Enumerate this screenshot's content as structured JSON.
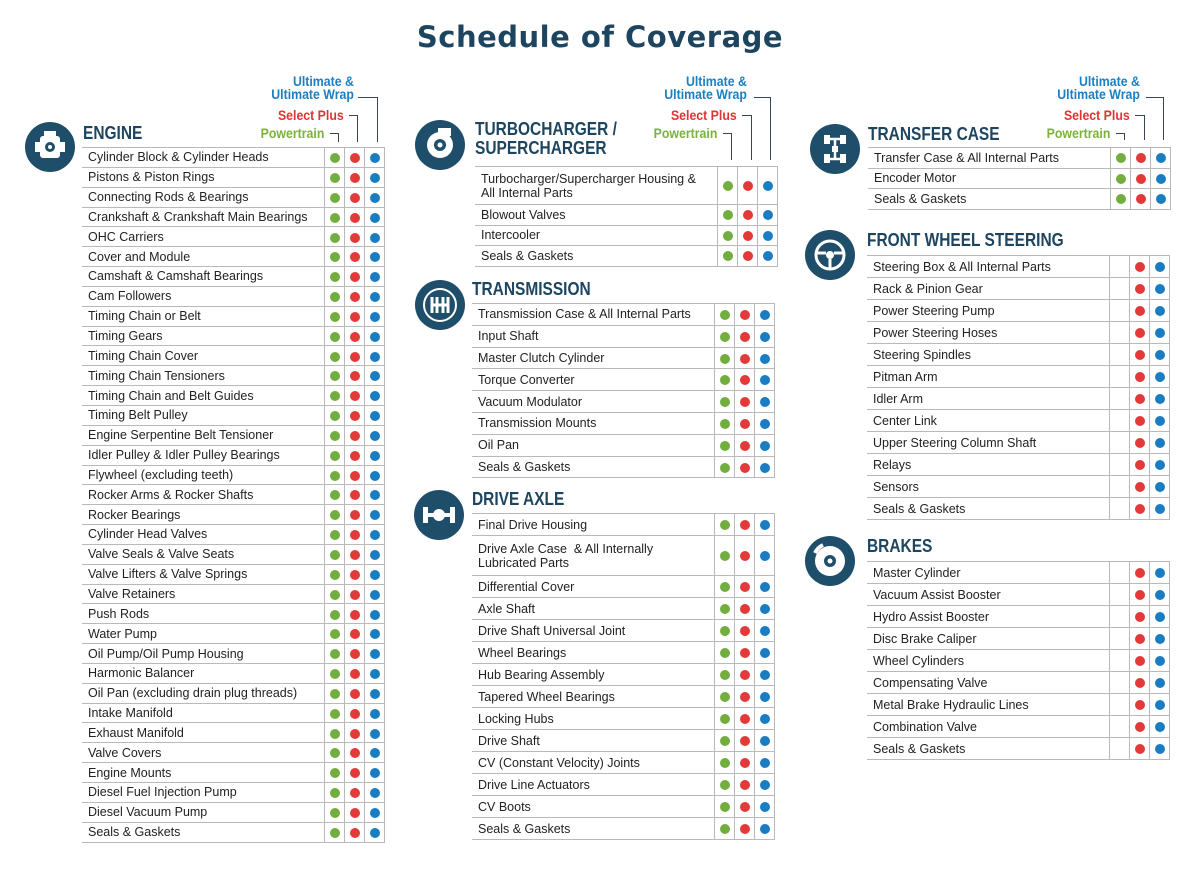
{
  "title": "Schedule of Coverage",
  "legend": {
    "ultimate": "Ultimate &\nUltimate Wrap",
    "select_plus": "Select Plus",
    "powertrain": "Powertrain"
  },
  "colors": {
    "powertrain": "#72ad3f",
    "select_plus": "#e23a39",
    "ultimate": "#1a7dc1",
    "heading": "#1e4560",
    "icon_bg": "#1f4e6b"
  },
  "sections": {
    "engine": {
      "title": "ENGINE",
      "icon": "engine-icon",
      "items": [
        {
          "label": "Cylinder Block & Cylinder Heads",
          "coverage": [
            "powertrain",
            "select_plus",
            "ultimate"
          ]
        },
        {
          "label": "Pistons & Piston Rings",
          "coverage": [
            "powertrain",
            "select_plus",
            "ultimate"
          ]
        },
        {
          "label": "Connecting Rods & Bearings",
          "coverage": [
            "powertrain",
            "select_plus",
            "ultimate"
          ]
        },
        {
          "label": "Crankshaft & Crankshaft Main Bearings",
          "coverage": [
            "powertrain",
            "select_plus",
            "ultimate"
          ]
        },
        {
          "label": "OHC Carriers",
          "coverage": [
            "powertrain",
            "select_plus",
            "ultimate"
          ]
        },
        {
          "label": "Cover and Module",
          "coverage": [
            "powertrain",
            "select_plus",
            "ultimate"
          ]
        },
        {
          "label": "Camshaft & Camshaft Bearings",
          "coverage": [
            "powertrain",
            "select_plus",
            "ultimate"
          ]
        },
        {
          "label": "Cam Followers",
          "coverage": [
            "powertrain",
            "select_plus",
            "ultimate"
          ]
        },
        {
          "label": "Timing Chain or Belt",
          "coverage": [
            "powertrain",
            "select_plus",
            "ultimate"
          ]
        },
        {
          "label": "Timing Gears",
          "coverage": [
            "powertrain",
            "select_plus",
            "ultimate"
          ]
        },
        {
          "label": "Timing Chain Cover",
          "coverage": [
            "powertrain",
            "select_plus",
            "ultimate"
          ]
        },
        {
          "label": "Timing Chain Tensioners",
          "coverage": [
            "powertrain",
            "select_plus",
            "ultimate"
          ]
        },
        {
          "label": "Timing Chain and Belt Guides",
          "coverage": [
            "powertrain",
            "select_plus",
            "ultimate"
          ]
        },
        {
          "label": "Timing Belt Pulley",
          "coverage": [
            "powertrain",
            "select_plus",
            "ultimate"
          ]
        },
        {
          "label": "Engine Serpentine Belt Tensioner",
          "coverage": [
            "powertrain",
            "select_plus",
            "ultimate"
          ]
        },
        {
          "label": "Idler Pulley & Idler Pulley Bearings",
          "coverage": [
            "powertrain",
            "select_plus",
            "ultimate"
          ]
        },
        {
          "label": "Flywheel (excluding teeth)",
          "coverage": [
            "powertrain",
            "select_plus",
            "ultimate"
          ]
        },
        {
          "label": "Rocker Arms & Rocker Shafts",
          "coverage": [
            "powertrain",
            "select_plus",
            "ultimate"
          ]
        },
        {
          "label": "Rocker Bearings",
          "coverage": [
            "powertrain",
            "select_plus",
            "ultimate"
          ]
        },
        {
          "label": "Cylinder Head Valves",
          "coverage": [
            "powertrain",
            "select_plus",
            "ultimate"
          ]
        },
        {
          "label": "Valve Seals & Valve Seats",
          "coverage": [
            "powertrain",
            "select_plus",
            "ultimate"
          ]
        },
        {
          "label": "Valve Lifters & Valve Springs",
          "coverage": [
            "powertrain",
            "select_plus",
            "ultimate"
          ]
        },
        {
          "label": "Valve Retainers",
          "coverage": [
            "powertrain",
            "select_plus",
            "ultimate"
          ]
        },
        {
          "label": "Push Rods",
          "coverage": [
            "powertrain",
            "select_plus",
            "ultimate"
          ]
        },
        {
          "label": "Water Pump",
          "coverage": [
            "powertrain",
            "select_plus",
            "ultimate"
          ]
        },
        {
          "label": "Oil Pump/Oil Pump Housing",
          "coverage": [
            "powertrain",
            "select_plus",
            "ultimate"
          ]
        },
        {
          "label": "Harmonic Balancer",
          "coverage": [
            "powertrain",
            "select_plus",
            "ultimate"
          ]
        },
        {
          "label": "Oil Pan (excluding drain plug threads)",
          "coverage": [
            "powertrain",
            "select_plus",
            "ultimate"
          ]
        },
        {
          "label": "Intake Manifold",
          "coverage": [
            "powertrain",
            "select_plus",
            "ultimate"
          ]
        },
        {
          "label": "Exhaust Manifold",
          "coverage": [
            "powertrain",
            "select_plus",
            "ultimate"
          ]
        },
        {
          "label": "Valve Covers",
          "coverage": [
            "powertrain",
            "select_plus",
            "ultimate"
          ]
        },
        {
          "label": "Engine Mounts",
          "coverage": [
            "powertrain",
            "select_plus",
            "ultimate"
          ]
        },
        {
          "label": "Diesel Fuel Injection Pump",
          "coverage": [
            "powertrain",
            "select_plus",
            "ultimate"
          ]
        },
        {
          "label": "Diesel Vacuum Pump",
          "coverage": [
            "powertrain",
            "select_plus",
            "ultimate"
          ]
        },
        {
          "label": "Seals & Gaskets",
          "coverage": [
            "powertrain",
            "select_plus",
            "ultimate"
          ]
        }
      ]
    },
    "turbo": {
      "title": "TURBOCHARGER /\nSUPERCHARGER",
      "icon": "turbocharger-icon",
      "items": [
        {
          "label": "Turbocharger/Supercharger Housing &\nAll Internal Parts",
          "coverage": [
            "powertrain",
            "select_plus",
            "ultimate"
          ]
        },
        {
          "label": "Blowout Valves",
          "coverage": [
            "powertrain",
            "select_plus",
            "ultimate"
          ]
        },
        {
          "label": "Intercooler",
          "coverage": [
            "powertrain",
            "select_plus",
            "ultimate"
          ]
        },
        {
          "label": "Seals & Gaskets",
          "coverage": [
            "powertrain",
            "select_plus",
            "ultimate"
          ]
        }
      ]
    },
    "transmission": {
      "title": "TRANSMISSION",
      "icon": "gear-shift-icon",
      "items": [
        {
          "label": "Transmission Case & All Internal Parts",
          "coverage": [
            "powertrain",
            "select_plus",
            "ultimate"
          ]
        },
        {
          "label": "Input Shaft",
          "coverage": [
            "powertrain",
            "select_plus",
            "ultimate"
          ]
        },
        {
          "label": "Master Clutch Cylinder",
          "coverage": [
            "powertrain",
            "select_plus",
            "ultimate"
          ]
        },
        {
          "label": "Torque Converter",
          "coverage": [
            "powertrain",
            "select_plus",
            "ultimate"
          ]
        },
        {
          "label": "Vacuum Modulator",
          "coverage": [
            "powertrain",
            "select_plus",
            "ultimate"
          ]
        },
        {
          "label": "Transmission Mounts",
          "coverage": [
            "powertrain",
            "select_plus",
            "ultimate"
          ]
        },
        {
          "label": "Oil Pan",
          "coverage": [
            "powertrain",
            "select_plus",
            "ultimate"
          ]
        },
        {
          "label": "Seals & Gaskets",
          "coverage": [
            "powertrain",
            "select_plus",
            "ultimate"
          ]
        }
      ]
    },
    "drive_axle": {
      "title": "DRIVE AXLE",
      "icon": "axle-icon",
      "items": [
        {
          "label": "Final Drive Housing",
          "coverage": [
            "powertrain",
            "select_plus",
            "ultimate"
          ]
        },
        {
          "label": "Drive Axle Case  & All Internally\nLubricated Parts",
          "coverage": [
            "powertrain",
            "select_plus",
            "ultimate"
          ]
        },
        {
          "label": "Differential Cover",
          "coverage": [
            "powertrain",
            "select_plus",
            "ultimate"
          ]
        },
        {
          "label": "Axle Shaft",
          "coverage": [
            "powertrain",
            "select_plus",
            "ultimate"
          ]
        },
        {
          "label": "Drive Shaft Universal Joint",
          "coverage": [
            "powertrain",
            "select_plus",
            "ultimate"
          ]
        },
        {
          "label": "Wheel Bearings",
          "coverage": [
            "powertrain",
            "select_plus",
            "ultimate"
          ]
        },
        {
          "label": "Hub Bearing Assembly",
          "coverage": [
            "powertrain",
            "select_plus",
            "ultimate"
          ]
        },
        {
          "label": "Tapered Wheel Bearings",
          "coverage": [
            "powertrain",
            "select_plus",
            "ultimate"
          ]
        },
        {
          "label": "Locking Hubs",
          "coverage": [
            "powertrain",
            "select_plus",
            "ultimate"
          ]
        },
        {
          "label": "Drive Shaft",
          "coverage": [
            "powertrain",
            "select_plus",
            "ultimate"
          ]
        },
        {
          "label": "CV (Constant Velocity) Joints",
          "coverage": [
            "powertrain",
            "select_plus",
            "ultimate"
          ]
        },
        {
          "label": "Drive Line Actuators",
          "coverage": [
            "powertrain",
            "select_plus",
            "ultimate"
          ]
        },
        {
          "label": "CV Boots",
          "coverage": [
            "powertrain",
            "select_plus",
            "ultimate"
          ]
        },
        {
          "label": "Seals & Gaskets",
          "coverage": [
            "powertrain",
            "select_plus",
            "ultimate"
          ]
        }
      ]
    },
    "transfer_case": {
      "title": "TRANSFER CASE",
      "icon": "drivetrain-icon",
      "items": [
        {
          "label": "Transfer Case & All Internal Parts",
          "coverage": [
            "powertrain",
            "select_plus",
            "ultimate"
          ]
        },
        {
          "label": "Encoder Motor",
          "coverage": [
            "powertrain",
            "select_plus",
            "ultimate"
          ]
        },
        {
          "label": "Seals & Gaskets",
          "coverage": [
            "powertrain",
            "select_plus",
            "ultimate"
          ]
        }
      ]
    },
    "steering": {
      "title": "FRONT WHEEL STEERING",
      "icon": "steering-wheel-icon",
      "items": [
        {
          "label": "Steering Box & All Internal Parts",
          "coverage": [
            "select_plus",
            "ultimate"
          ]
        },
        {
          "label": "Rack & Pinion Gear",
          "coverage": [
            "select_plus",
            "ultimate"
          ]
        },
        {
          "label": "Power Steering Pump",
          "coverage": [
            "select_plus",
            "ultimate"
          ]
        },
        {
          "label": "Power Steering Hoses",
          "coverage": [
            "select_plus",
            "ultimate"
          ]
        },
        {
          "label": "Steering Spindles",
          "coverage": [
            "select_plus",
            "ultimate"
          ]
        },
        {
          "label": "Pitman Arm",
          "coverage": [
            "select_plus",
            "ultimate"
          ]
        },
        {
          "label": "Idler Arm",
          "coverage": [
            "select_plus",
            "ultimate"
          ]
        },
        {
          "label": "Center Link",
          "coverage": [
            "select_plus",
            "ultimate"
          ]
        },
        {
          "label": "Upper Steering Column Shaft",
          "coverage": [
            "select_plus",
            "ultimate"
          ]
        },
        {
          "label": "Relays",
          "coverage": [
            "select_plus",
            "ultimate"
          ]
        },
        {
          "label": "Sensors",
          "coverage": [
            "select_plus",
            "ultimate"
          ]
        },
        {
          "label": "Seals & Gaskets",
          "coverage": [
            "select_plus",
            "ultimate"
          ]
        }
      ]
    },
    "brakes": {
      "title": "BRAKES",
      "icon": "brake-disc-icon",
      "items": [
        {
          "label": "Master Cylinder",
          "coverage": [
            "select_plus",
            "ultimate"
          ]
        },
        {
          "label": "Vacuum Assist Booster",
          "coverage": [
            "select_plus",
            "ultimate"
          ]
        },
        {
          "label": "Hydro Assist Booster",
          "coverage": [
            "select_plus",
            "ultimate"
          ]
        },
        {
          "label": "Disc Brake Caliper",
          "coverage": [
            "select_plus",
            "ultimate"
          ]
        },
        {
          "label": "Wheel Cylinders",
          "coverage": [
            "select_plus",
            "ultimate"
          ]
        },
        {
          "label": "Compensating Valve",
          "coverage": [
            "select_plus",
            "ultimate"
          ]
        },
        {
          "label": "Metal Brake Hydraulic Lines",
          "coverage": [
            "select_plus",
            "ultimate"
          ]
        },
        {
          "label": "Combination Valve",
          "coverage": [
            "select_plus",
            "ultimate"
          ]
        },
        {
          "label": "Seals & Gaskets",
          "coverage": [
            "select_plus",
            "ultimate"
          ]
        }
      ]
    }
  }
}
